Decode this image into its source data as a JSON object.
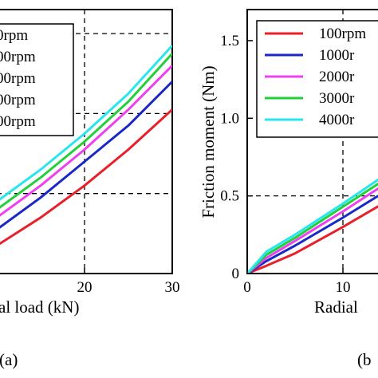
{
  "chart_data": [
    {
      "panel": "a",
      "panel_text": "(a)",
      "type": "line",
      "xlabel_visible": "al load (kN)",
      "ylabel": "",
      "xlim": [
        10,
        30
      ],
      "ylim": [
        0,
        3.3
      ],
      "xticks": [
        {
          "value": 20,
          "label": "20"
        },
        {
          "value": 30,
          "label": "30"
        }
      ],
      "yticks": [],
      "grid": "dashed guide lines",
      "guides": {
        "x": [
          20
        ],
        "y": [
          1.0,
          2.0,
          3.0
        ]
      },
      "legend_position": "top-left",
      "legend_labels": [
        "0rpm",
        "00rpm",
        "00rpm",
        "00rpm",
        "00rpm"
      ],
      "series": [
        {
          "color": "#e8202a",
          "x": [
            10,
            15,
            20,
            25,
            30
          ],
          "y": [
            0.35,
            0.7,
            1.1,
            1.55,
            2.05
          ]
        },
        {
          "color": "#1a28c8",
          "x": [
            10,
            15,
            20,
            25,
            30
          ],
          "y": [
            0.55,
            0.95,
            1.4,
            1.85,
            2.4
          ]
        },
        {
          "color": "#ee3ff0",
          "x": [
            10,
            15,
            20,
            25,
            30
          ],
          "y": [
            0.7,
            1.1,
            1.55,
            2.05,
            2.6
          ]
        },
        {
          "color": "#22d03a",
          "x": [
            10,
            15,
            20,
            25,
            30
          ],
          "y": [
            0.8,
            1.2,
            1.65,
            2.15,
            2.75
          ]
        },
        {
          "color": "#28e6ee",
          "x": [
            10,
            15,
            20,
            25,
            30
          ],
          "y": [
            0.9,
            1.3,
            1.75,
            2.25,
            2.85
          ]
        }
      ]
    },
    {
      "panel": "b",
      "panel_text": "(b",
      "type": "line",
      "xlabel_visible": "Radial",
      "ylabel": "Friction moment (Nm)",
      "xlim": [
        0,
        15
      ],
      "ylim": [
        0,
        1.7
      ],
      "xticks": [
        {
          "value": 0,
          "label": "0"
        },
        {
          "value": 10,
          "label": "10"
        }
      ],
      "yticks": [
        {
          "value": 0,
          "label": "0"
        },
        {
          "value": 0.5,
          "label": "0.5"
        },
        {
          "value": 1.0,
          "label": "1.0"
        },
        {
          "value": 1.5,
          "label": "1.5"
        }
      ],
      "grid": "dashed guide lines",
      "guides": {
        "x": [
          10
        ],
        "y": [
          0.5
        ]
      },
      "legend_position": "top",
      "legend_labels": [
        "100rpm",
        "1000r",
        "2000r",
        "3000r",
        "4000r"
      ],
      "series": [
        {
          "color": "#e8202a",
          "x": [
            0,
            2,
            5,
            10,
            15
          ],
          "y": [
            0,
            0.05,
            0.13,
            0.3,
            0.48
          ]
        },
        {
          "color": "#1a28c8",
          "x": [
            0,
            2,
            5,
            10,
            15
          ],
          "y": [
            0,
            0.08,
            0.18,
            0.36,
            0.55
          ]
        },
        {
          "color": "#ee3ff0",
          "x": [
            0,
            2,
            5,
            10,
            15
          ],
          "y": [
            0,
            0.1,
            0.21,
            0.4,
            0.6
          ]
        },
        {
          "color": "#22d03a",
          "x": [
            0,
            2,
            5,
            10,
            15
          ],
          "y": [
            0,
            0.12,
            0.23,
            0.43,
            0.63
          ]
        },
        {
          "color": "#28e6ee",
          "x": [
            0,
            2,
            5,
            10,
            15
          ],
          "y": [
            0,
            0.14,
            0.25,
            0.45,
            0.66
          ]
        }
      ]
    }
  ]
}
